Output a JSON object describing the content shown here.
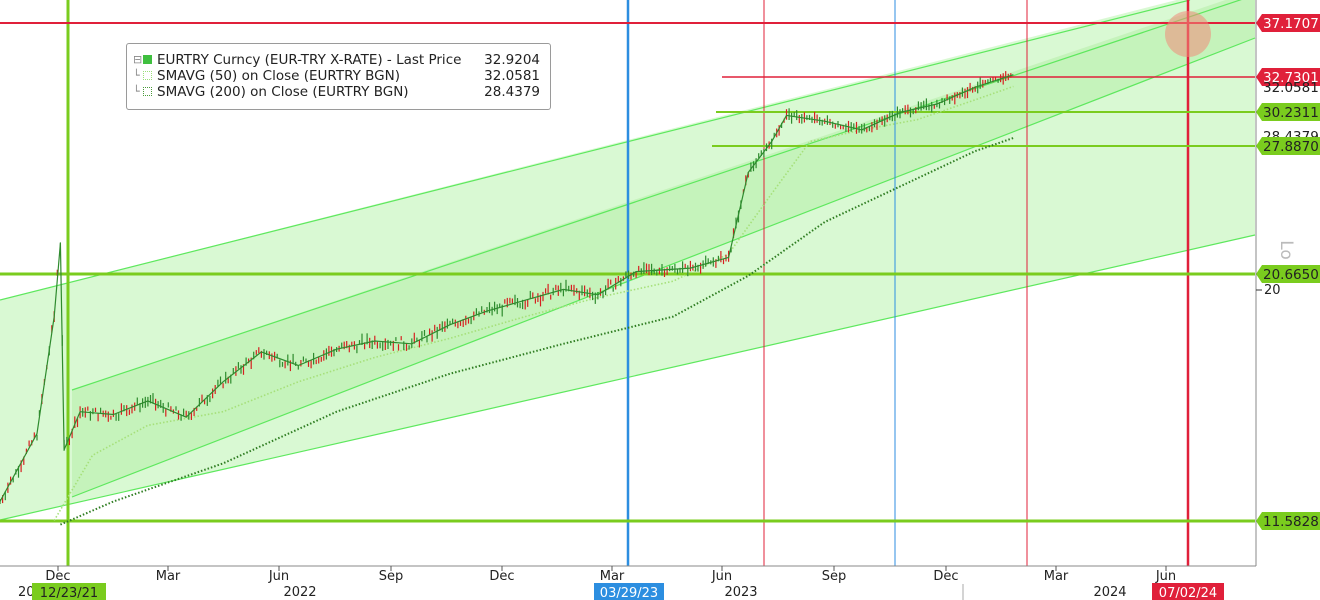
{
  "legend": {
    "main": {
      "name": "EURTRY Curncy (EUR-TRY X-RATE) - Last Price",
      "value": "32.9204",
      "color": "#3fbf3f"
    },
    "sma50": {
      "name": "SMAVG (50)  on Close (EURTRY BGN)",
      "value": "32.0581"
    },
    "sma200": {
      "name": "SMAVG (200)  on Close (EURTRY BGN)",
      "value": "28.4379"
    }
  },
  "side_label": "Lo",
  "colors": {
    "channel_fill": "#ccf7c4",
    "channel_line": "#5ee85e",
    "price_up": "#2e8b2e",
    "price_down": "#d62020",
    "red_line": "#e0203a",
    "blue_line": "#2c8ee0",
    "green_level": "#7acc1e"
  },
  "chart_data": {
    "type": "line",
    "title": "EURTRY Curncy (EUR-TRY X-RATE) - Last Price",
    "xlabel": "",
    "ylabel": "",
    "x_ticks": [
      "Dec",
      "Mar",
      "Jun",
      "Sep",
      "Dec",
      "Mar",
      "Jun",
      "Sep",
      "Dec",
      "Mar",
      "Jun"
    ],
    "year_labels": [
      "2022",
      "2023",
      "2024"
    ],
    "y_tick_label": "20",
    "date_markers": [
      {
        "label": "12/23/21",
        "color": "#7acc1e"
      },
      {
        "label": "03/29/23",
        "color": "#2c8ee0"
      },
      {
        "label": "07/02/24",
        "color": "#e0203a"
      }
    ],
    "price_labels": [
      {
        "text": "37.1707",
        "color": "#e0203a"
      },
      {
        "text": "32.7301",
        "color": "#e0203a"
      },
      {
        "text": "32.0581",
        "color": "#ffffff"
      },
      {
        "text": "30.2311",
        "color": "#7acc1e"
      },
      {
        "text": "28.4379",
        "color": "#ffffff"
      },
      {
        "text": "27.8870",
        "color": "#7acc1e"
      },
      {
        "text": "20.6650",
        "color": "#7acc1e"
      },
      {
        "text": "11.5828",
        "color": "#7acc1e"
      }
    ],
    "series": [
      {
        "name": "EURTRY Curncy (EUR-TRY X-RATE) - Last Price",
        "dates": [
          "2021-11-01",
          "2021-12-01",
          "2021-12-15",
          "2021-12-20",
          "2021-12-23",
          "2022-01-05",
          "2022-02-01",
          "2022-03-01",
          "2022-04-01",
          "2022-05-01",
          "2022-06-01",
          "2022-07-01",
          "2022-08-01",
          "2022-09-01",
          "2022-10-01",
          "2022-11-01",
          "2022-12-01",
          "2023-01-01",
          "2023-02-01",
          "2023-03-01",
          "2023-04-01",
          "2023-05-15",
          "2023-06-15",
          "2023-07-01",
          "2023-07-20",
          "2023-08-01",
          "2023-09-01",
          "2023-10-01",
          "2023-11-01",
          "2023-12-01",
          "2024-01-01",
          "2024-02-01"
        ],
        "values": [
          12.3,
          14.8,
          19.1,
          22.4,
          14.2,
          15.6,
          15.5,
          16.0,
          15.4,
          16.7,
          17.8,
          17.3,
          17.9,
          18.2,
          18.1,
          18.8,
          19.3,
          19.7,
          20.1,
          19.9,
          20.8,
          21.0,
          21.6,
          26.4,
          28.2,
          30.0,
          29.6,
          29.0,
          30.2,
          30.8,
          32.0,
          32.92
        ]
      },
      {
        "name": "SMAVG (50)  on Close (EURTRY BGN)",
        "dates": [
          "2021-12-15",
          "2022-01-15",
          "2022-03-01",
          "2022-05-01",
          "2022-07-01",
          "2022-09-01",
          "2022-11-01",
          "2023-01-01",
          "2023-03-01",
          "2023-05-01",
          "2023-06-15",
          "2023-07-20",
          "2023-08-20",
          "2023-10-01",
          "2023-11-15",
          "2024-01-01",
          "2024-02-01"
        ],
        "values": [
          11.6,
          14.0,
          15.1,
          15.6,
          16.7,
          17.6,
          18.3,
          19.1,
          19.8,
          20.4,
          21.8,
          25.2,
          28.2,
          29.0,
          29.7,
          31.1,
          32.06
        ]
      },
      {
        "name": "SMAVG (200)  on Close (EURTRY BGN)",
        "dates": [
          "2021-12-20",
          "2022-02-01",
          "2022-05-01",
          "2022-08-01",
          "2022-11-01",
          "2023-02-01",
          "2023-05-01",
          "2023-07-01",
          "2023-09-01",
          "2023-11-01",
          "2024-01-01",
          "2024-02-01"
        ],
        "values": [
          11.5,
          12.3,
          13.7,
          15.6,
          17.0,
          18.1,
          19.1,
          20.6,
          23.6,
          25.6,
          27.6,
          28.44
        ]
      }
    ],
    "ylim": [
      11.0,
      38.0
    ],
    "grid": false,
    "legend_position": "top-left"
  }
}
